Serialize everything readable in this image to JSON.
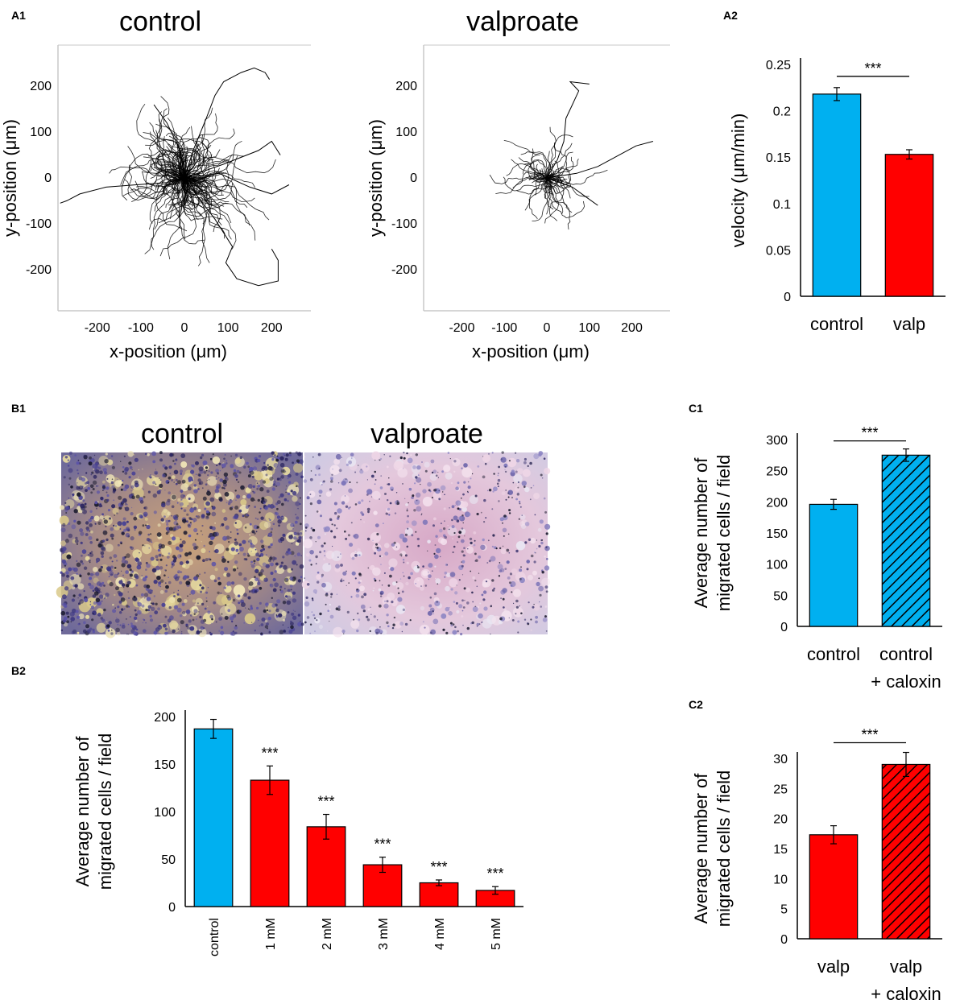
{
  "panel_labels": {
    "a1": "A1",
    "a2": "A2",
    "b1": "B1",
    "b2": "B2",
    "c1": "C1",
    "c2": "C2"
  },
  "colors": {
    "control": "#00b0f0",
    "valproate": "#ff0000",
    "track": "#000000"
  },
  "chart_data": [
    {
      "id": "A1-control",
      "type": "scatter",
      "title": "control",
      "xlabel": "x-position (μm)",
      "ylabel": "y-position (μm)",
      "xticks": [
        -200,
        -100,
        0,
        100,
        200
      ],
      "yticks": [
        200,
        100,
        0,
        -100,
        -200
      ],
      "xlim": [
        -290,
        290
      ],
      "ylim": [
        -290,
        290
      ],
      "note": "migration tracks of individual cells, origin-centered",
      "long_tracks": [
        [
          [
            0,
            0
          ],
          [
            20,
            60
          ],
          [
            50,
            130
          ],
          [
            70,
            180
          ],
          [
            90,
            210
          ],
          [
            130,
            230
          ],
          [
            160,
            240
          ],
          [
            185,
            230
          ],
          [
            195,
            215
          ]
        ],
        [
          [
            0,
            0
          ],
          [
            -40,
            -10
          ],
          [
            -110,
            -15
          ],
          [
            -180,
            -20
          ],
          [
            -240,
            -35
          ],
          [
            -270,
            -50
          ],
          [
            -285,
            -55
          ]
        ],
        [
          [
            0,
            0
          ],
          [
            30,
            -40
          ],
          [
            70,
            -90
          ],
          [
            110,
            -150
          ],
          [
            95,
            -185
          ],
          [
            120,
            -220
          ],
          [
            170,
            -235
          ],
          [
            215,
            -225
          ],
          [
            215,
            -180
          ],
          [
            200,
            -155
          ]
        ],
        [
          [
            0,
            0
          ],
          [
            -10,
            60
          ],
          [
            -40,
            120
          ],
          [
            -70,
            160
          ]
        ],
        [
          [
            0,
            0
          ],
          [
            80,
            10
          ],
          [
            150,
            -20
          ],
          [
            200,
            -35
          ],
          [
            240,
            -15
          ]
        ],
        [
          [
            0,
            0
          ],
          [
            90,
            30
          ],
          [
            170,
            60
          ],
          [
            200,
            80
          ],
          [
            220,
            50
          ]
        ]
      ]
    },
    {
      "id": "A1-valproate",
      "type": "scatter",
      "title": "valproate",
      "xlabel": "x-position (μm)",
      "ylabel": "y-position (μm)",
      "xticks": [
        -200,
        -100,
        0,
        100,
        200
      ],
      "yticks": [
        200,
        100,
        0,
        -100,
        -200
      ],
      "xlim": [
        -290,
        290
      ],
      "ylim": [
        -290,
        290
      ],
      "note": "migration tracks of individual cells, origin-centered",
      "long_tracks": [
        [
          [
            0,
            0
          ],
          [
            25,
            40
          ],
          [
            40,
            80
          ],
          [
            45,
            130
          ],
          [
            60,
            160
          ],
          [
            75,
            190
          ],
          [
            55,
            210
          ],
          [
            100,
            205
          ]
        ],
        [
          [
            0,
            0
          ],
          [
            70,
            10
          ],
          [
            120,
            25
          ],
          [
            170,
            50
          ],
          [
            210,
            70
          ],
          [
            250,
            80
          ]
        ],
        [
          [
            0,
            0
          ],
          [
            60,
            -20
          ],
          [
            90,
            -40
          ],
          [
            120,
            -60
          ]
        ]
      ]
    },
    {
      "id": "A2",
      "type": "bar",
      "categories": [
        "control",
        "valp"
      ],
      "values": [
        0.218,
        0.153
      ],
      "errors": [
        0.007,
        0.005
      ],
      "ylabel": "velocity (μm/min)",
      "ylim": [
        0,
        0.25
      ],
      "yticks": [
        "0",
        "0.05",
        "0.1",
        "0.15",
        "0.2",
        "0.25"
      ],
      "significance": "***"
    },
    {
      "id": "B2",
      "type": "bar",
      "categories": [
        "control",
        "1 mM",
        "2 mM",
        "3 mM",
        "4 mM",
        "5 mM"
      ],
      "values": [
        187,
        133,
        84,
        44,
        25,
        17
      ],
      "errors": [
        10,
        15,
        13,
        8,
        3,
        4
      ],
      "stars": [
        "",
        "***",
        "***",
        "***",
        "***",
        "***"
      ],
      "ylabel_lines": [
        "Average number of",
        "migrated cells / field"
      ],
      "ylim": [
        0,
        200
      ],
      "yticks": [
        "0",
        "50",
        "100",
        "150",
        "200"
      ]
    },
    {
      "id": "C1",
      "type": "bar",
      "categories": [
        [
          "control"
        ],
        [
          "control",
          "+ caloxin"
        ]
      ],
      "values": [
        196,
        275
      ],
      "errors": [
        8,
        10
      ],
      "hatched": [
        false,
        true
      ],
      "ylabel_lines": [
        "Average number of",
        "migrated cells / field"
      ],
      "ylim": [
        0,
        300
      ],
      "yticks": [
        "0",
        "50",
        "100",
        "150",
        "200",
        "250",
        "300"
      ],
      "significance": "***"
    },
    {
      "id": "C2",
      "type": "bar",
      "categories": [
        [
          "valp"
        ],
        [
          "valp",
          "+ caloxin"
        ]
      ],
      "values": [
        17.3,
        29
      ],
      "errors": [
        1.5,
        2
      ],
      "hatched": [
        false,
        true
      ],
      "ylabel_lines": [
        "Average number of",
        "migrated cells / field"
      ],
      "ylim": [
        0,
        30
      ],
      "yticks": [
        "0",
        "5",
        "10",
        "15",
        "20",
        "25",
        "30"
      ],
      "significance": "***"
    }
  ],
  "micrographs": {
    "control": {
      "title": "control",
      "stain": "dense purple crystal-violet cells on yellow membrane"
    },
    "valproate": {
      "title": "valproate",
      "stain": "sparse purple cells on pink membrane"
    }
  }
}
